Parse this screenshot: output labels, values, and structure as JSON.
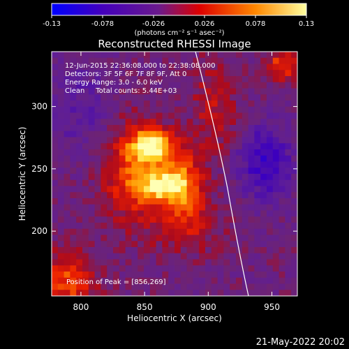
{
  "chart_data": {
    "type": "heatmap",
    "title": "Reconstructed RHESSI Image",
    "xlabel": "Heliocentric X (arcsec)",
    "ylabel": "Heliocentric Y (arcsec)",
    "xlim": [
      777,
      970
    ],
    "ylim": [
      148,
      344
    ],
    "x_ticks": [
      800,
      850,
      900,
      950
    ],
    "y_ticks": [
      200,
      250,
      300
    ],
    "colorbar": {
      "min": -0.13,
      "max": 0.13,
      "ticks": [
        "-0.13",
        "-0.078",
        "-0.026",
        "0.026",
        "0.078",
        "0.13"
      ],
      "unit_label": "(photons cm⁻² s⁻¹ asec⁻²)",
      "colors": [
        "#0000ff",
        "#4400bb",
        "#6a1a8c",
        "#ff0000",
        "#ff8800",
        "#ffffa0"
      ]
    },
    "annotations": {
      "time_range": "12-Jun-2015 22:36:08.000 to 22:38:08.000",
      "detectors": "Detectors: 3F 5F 6F 7F 8F 9F, Att 0",
      "energy": "Energy Range: 3.0 - 6.0 keV",
      "clean": "Clean     Total counts: 5.44E+03",
      "peak": "Position of Peak = [856,269]"
    },
    "peak": {
      "x": 856,
      "y": 269
    },
    "grid": false,
    "limb_curve": "white arc near X=880-935"
  },
  "footer_date": "21-May-2022 20:02"
}
